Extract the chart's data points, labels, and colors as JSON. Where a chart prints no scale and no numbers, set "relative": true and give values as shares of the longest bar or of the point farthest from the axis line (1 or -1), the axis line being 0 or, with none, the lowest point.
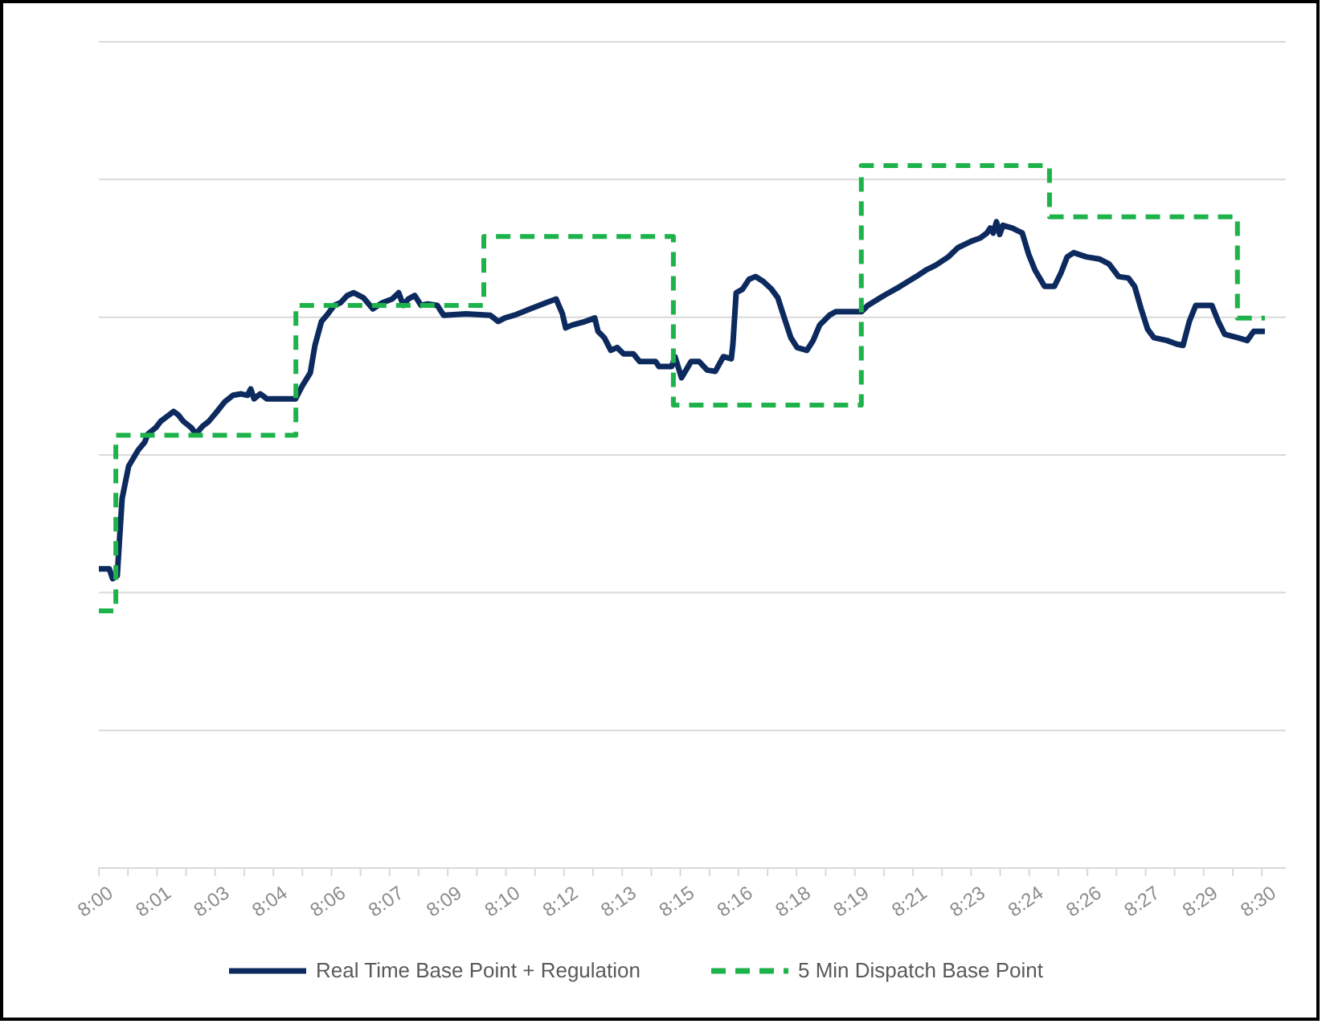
{
  "chart_data": {
    "type": "line",
    "relative": true,
    "grid": "y",
    "legend": "bottom",
    "xlim": [
      8,
      8.5103
    ],
    "xticks": [
      {
        "value": 8,
        "label": "8:00"
      },
      {
        "value": 8.0125,
        "label": null
      },
      {
        "value": 8.025,
        "label": "8:01"
      },
      {
        "value": 8.0375,
        "label": null
      },
      {
        "value": 8.05,
        "label": "8:03"
      },
      {
        "value": 8.0625,
        "label": null
      },
      {
        "value": 8.075,
        "label": "8:04"
      },
      {
        "value": 8.0875,
        "label": null
      },
      {
        "value": 8.1,
        "label": "8:06"
      },
      {
        "value": 8.1125,
        "label": null
      },
      {
        "value": 8.125,
        "label": "8:07"
      },
      {
        "value": 8.1375,
        "label": null
      },
      {
        "value": 8.15,
        "label": "8:09"
      },
      {
        "value": 8.1625,
        "label": null
      },
      {
        "value": 8.175,
        "label": "8:10"
      },
      {
        "value": 8.1875,
        "label": null
      },
      {
        "value": 8.2,
        "label": "8:12"
      },
      {
        "value": 8.2125,
        "label": null
      },
      {
        "value": 8.225,
        "label": "8:13"
      },
      {
        "value": 8.2375,
        "label": null
      },
      {
        "value": 8.25,
        "label": "8:15"
      },
      {
        "value": 8.2625,
        "label": null
      },
      {
        "value": 8.275,
        "label": "8:16"
      },
      {
        "value": 8.2875,
        "label": null
      },
      {
        "value": 8.3,
        "label": "8:18"
      },
      {
        "value": 8.3125,
        "label": null
      },
      {
        "value": 8.325,
        "label": "8:19"
      },
      {
        "value": 8.3375,
        "label": null
      },
      {
        "value": 8.35,
        "label": "8:21"
      },
      {
        "value": 8.3625,
        "label": null
      },
      {
        "value": 8.375,
        "label": "8:23"
      },
      {
        "value": 8.3875,
        "label": null
      },
      {
        "value": 8.4,
        "label": "8:24"
      },
      {
        "value": 8.4125,
        "label": null
      },
      {
        "value": 8.425,
        "label": "8:26"
      },
      {
        "value": 8.4375,
        "label": null
      },
      {
        "value": 8.45,
        "label": "8:27"
      },
      {
        "value": 8.4625,
        "label": null
      },
      {
        "value": 8.475,
        "label": "8:29"
      },
      {
        "value": 8.4875,
        "label": null
      },
      {
        "value": 8.5,
        "label": "8:30"
      }
    ],
    "series": [
      {
        "name": "Real Time Base Point + Regulation",
        "line_style": "solid",
        "color": "#0d2a5e",
        "x": [
          8,
          8.0045,
          8.0059,
          8.0079,
          8.01,
          8.0128,
          8.0169,
          8.0197,
          8.0211,
          8.0245,
          8.0266,
          8.0294,
          8.0321,
          8.0342,
          8.0363,
          8.0397,
          8.0418,
          8.0446,
          8.0473,
          8.0508,
          8.0542,
          8.0577,
          8.0612,
          8.0639,
          8.0653,
          8.0667,
          8.0694,
          8.0722,
          8.0784,
          8.0846,
          8.0874,
          8.0909,
          8.0929,
          8.0957,
          8.0985,
          8.1012,
          8.104,
          8.1068,
          8.1095,
          8.1137,
          8.1178,
          8.122,
          8.1261,
          8.1289,
          8.1309,
          8.133,
          8.1358,
          8.1385,
          8.1413,
          8.1455,
          8.1482,
          8.1579,
          8.1683,
          8.1717,
          8.1745,
          8.1786,
          8.1855,
          8.1924,
          8.1966,
          8.1993,
          8.2007,
          8.2035,
          8.209,
          8.2132,
          8.2146,
          8.2173,
          8.2201,
          8.2228,
          8.2256,
          8.2298,
          8.2325,
          8.2394,
          8.2408,
          8.2463,
          8.2477,
          8.2505,
          8.2546,
          8.2581,
          8.2615,
          8.265,
          8.2685,
          8.2719,
          8.2726,
          8.274,
          8.2767,
          8.2795,
          8.2823,
          8.2857,
          8.2892,
          8.2919,
          8.2947,
          8.2975,
          8.3002,
          8.3044,
          8.3071,
          8.3099,
          8.3141,
          8.3168,
          8.3279,
          8.3306,
          8.3375,
          8.3445,
          8.3514,
          8.3555,
          8.3597,
          8.3652,
          8.3693,
          8.3749,
          8.379,
          8.3818,
          8.3832,
          8.3845,
          8.3859,
          8.3873,
          8.3887,
          8.3928,
          8.397,
          8.3997,
          8.4025,
          8.4066,
          8.4108,
          8.4136,
          8.4163,
          8.4191,
          8.4246,
          8.4301,
          8.4343,
          8.4384,
          8.4426,
          8.4453,
          8.4481,
          8.4509,
          8.4536,
          8.4592,
          8.4633,
          8.4661,
          8.4688,
          8.4716,
          8.4785,
          8.4813,
          8.484,
          8.4896,
          8.4937,
          8.4965,
          8.5013
        ],
        "values": [
          0.426,
          0.426,
          0.412,
          0.416,
          0.526,
          0.572,
          0.595,
          0.606,
          0.618,
          0.627,
          0.636,
          0.643,
          0.65,
          0.645,
          0.636,
          0.627,
          0.618,
          0.629,
          0.636,
          0.65,
          0.664,
          0.673,
          0.675,
          0.673,
          0.682,
          0.668,
          0.675,
          0.668,
          0.668,
          0.668,
          0.686,
          0.705,
          0.744,
          0.778,
          0.789,
          0.801,
          0.805,
          0.815,
          0.819,
          0.812,
          0.796,
          0.805,
          0.81,
          0.819,
          0.801,
          0.81,
          0.815,
          0.801,
          0.803,
          0.801,
          0.787,
          0.789,
          0.787,
          0.778,
          0.783,
          0.787,
          0.796,
          0.805,
          0.81,
          0.789,
          0.769,
          0.773,
          0.778,
          0.783,
          0.764,
          0.755,
          0.737,
          0.741,
          0.732,
          0.732,
          0.721,
          0.721,
          0.714,
          0.714,
          0.728,
          0.698,
          0.721,
          0.721,
          0.709,
          0.707,
          0.728,
          0.725,
          0.746,
          0.819,
          0.824,
          0.838,
          0.842,
          0.835,
          0.824,
          0.812,
          0.783,
          0.755,
          0.741,
          0.737,
          0.751,
          0.773,
          0.787,
          0.792,
          0.792,
          0.801,
          0.815,
          0.828,
          0.842,
          0.851,
          0.858,
          0.87,
          0.883,
          0.892,
          0.897,
          0.904,
          0.911,
          0.904,
          0.92,
          0.902,
          0.915,
          0.911,
          0.904,
          0.874,
          0.851,
          0.828,
          0.828,
          0.847,
          0.87,
          0.876,
          0.87,
          0.867,
          0.86,
          0.842,
          0.84,
          0.828,
          0.796,
          0.767,
          0.755,
          0.751,
          0.746,
          0.744,
          0.778,
          0.801,
          0.801,
          0.778,
          0.76,
          0.755,
          0.751,
          0.764,
          0.764
        ]
      },
      {
        "name": "5 Min Dispatch Base Point",
        "type": "step",
        "line_style": "dashed",
        "color": "#1db34a",
        "x": [
          8,
          8.0073,
          8.0847,
          8.1655,
          8.247,
          8.3278,
          8.4087,
          8.4895,
          8.5013
        ],
        "values": [
          0.366,
          0.616,
          0.801,
          0.899,
          0.659,
          1,
          0.927,
          0.783,
          0.783
        ]
      }
    ]
  }
}
